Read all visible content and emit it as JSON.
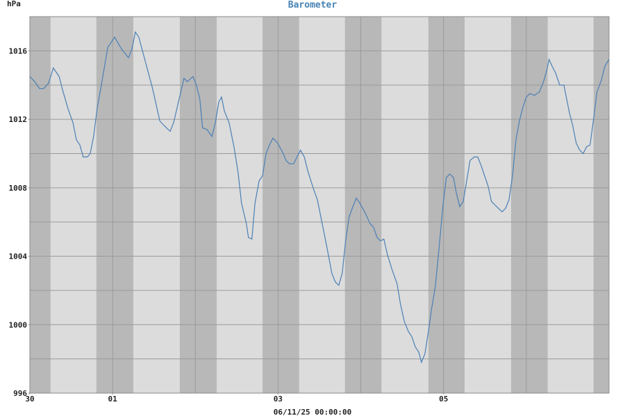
{
  "chart_data": {
    "type": "line",
    "title": "Barometer",
    "ylabel": "hPa",
    "xlabel": "06/11/25 00:00:00",
    "xlim": [
      0,
      168
    ],
    "xticks": [
      {
        "value": 0,
        "label": "30"
      },
      {
        "value": 24,
        "label": "01"
      },
      {
        "value": 72,
        "label": "03"
      },
      {
        "value": 120,
        "label": "05"
      }
    ],
    "xgrid": [
      24,
      48,
      72,
      96,
      120,
      144
    ],
    "ylim": [
      996,
      1018
    ],
    "yticks": [
      996,
      1000,
      1004,
      1008,
      1012,
      1016
    ],
    "ygrid": [
      998,
      1000,
      1002,
      1004,
      1006,
      1008,
      1010,
      1012,
      1014,
      1016
    ],
    "grid": true,
    "night": [
      [
        0,
        6
      ],
      [
        19.3,
        30
      ],
      [
        43.5,
        54.2
      ],
      [
        67.5,
        78.1
      ],
      [
        91.4,
        102
      ],
      [
        115.6,
        126.1
      ],
      [
        139.6,
        150.2
      ],
      [
        163.5,
        168
      ]
    ],
    "series": [
      {
        "color": "#4a7fb5",
        "x": [
          0,
          1.4,
          2.8,
          4.0,
          5.4,
          6.8,
          8.5,
          9.5,
          11.1,
          12.5,
          13.5,
          14.5,
          15.5,
          16.7,
          17.5,
          18.5,
          19.5,
          20.9,
          22.6,
          24.6,
          26.6,
          28.6,
          29.6,
          30.6,
          31.6,
          33.6,
          35.6,
          37.7,
          39.1,
          40.7,
          41.7,
          43.3,
          44.7,
          45.7,
          47.3,
          48.3,
          49.3,
          50.1,
          51.4,
          52.8,
          53.8,
          54.8,
          55.6,
          56.4,
          57.8,
          59.2,
          60.4,
          61.4,
          62.8,
          63.4,
          64.4,
          65.3,
          66.5,
          67.5,
          68.5,
          69.5,
          70.5,
          71.9,
          73.5,
          74.3,
          75.3,
          76.5,
          77.5,
          78.5,
          79.6,
          80.6,
          82.0,
          83.4,
          84.6,
          86.0,
          87.6,
          88.6,
          89.6,
          90.6,
          91.6,
          92.6,
          93.7,
          94.7,
          95.7,
          97.1,
          98.7,
          99.7,
          100.7,
          101.7,
          102.7,
          103.7,
          105.1,
          106.5,
          107.5,
          108.6,
          109.8,
          110.8,
          111.8,
          112.8,
          113.6,
          114.6,
          115.6,
          116.6,
          117.6,
          118.8,
          119.8,
          120.8,
          121.8,
          122.9,
          123.7,
          124.7,
          125.7,
          126.7,
          127.7,
          128.9,
          129.9,
          130.9,
          131.9,
          132.9,
          133.9,
          134.9,
          135.9,
          137.0,
          138.0,
          139.0,
          140.0,
          141.0,
          142.0,
          143.0,
          144.0,
          145.0,
          146.4,
          147.8,
          149.0,
          150.0,
          150.6,
          151.5,
          152.5,
          153.7,
          154.9,
          155.7,
          156.5,
          157.5,
          158.5,
          159.5,
          160.5,
          161.5,
          162.5,
          163.5,
          164.5,
          165.8,
          166.8,
          168.0
        ],
        "values": [
          1014.5,
          1014.2,
          1013.8,
          1013.8,
          1014.1,
          1015.0,
          1014.5,
          1013.7,
          1012.6,
          1011.8,
          1010.8,
          1010.5,
          1009.8,
          1009.8,
          1010.0,
          1011.0,
          1012.6,
          1014.2,
          1016.2,
          1016.8,
          1016.1,
          1015.6,
          1016.1,
          1017.1,
          1016.8,
          1015.3,
          1013.8,
          1011.9,
          1011.6,
          1011.3,
          1011.8,
          1013.2,
          1014.4,
          1014.2,
          1014.5,
          1014.0,
          1013.2,
          1011.5,
          1011.4,
          1011.0,
          1011.8,
          1013.0,
          1013.3,
          1012.5,
          1011.8,
          1010.4,
          1008.9,
          1007.1,
          1005.9,
          1005.1,
          1005.0,
          1007.1,
          1008.4,
          1008.7,
          1010.0,
          1010.5,
          1010.9,
          1010.6,
          1010.0,
          1009.6,
          1009.4,
          1009.4,
          1009.8,
          1010.2,
          1009.8,
          1009.0,
          1008.1,
          1007.3,
          1006.1,
          1004.7,
          1003.0,
          1002.5,
          1002.3,
          1003.0,
          1004.9,
          1006.3,
          1006.9,
          1007.4,
          1007.1,
          1006.6,
          1005.9,
          1005.7,
          1005.1,
          1004.9,
          1005.0,
          1004.1,
          1003.2,
          1002.4,
          1001.2,
          1000.2,
          999.6,
          999.3,
          998.7,
          998.4,
          997.8,
          998.3,
          999.6,
          1001.0,
          1002.2,
          1004.7,
          1006.9,
          1008.6,
          1008.8,
          1008.6,
          1007.7,
          1006.9,
          1007.2,
          1008.4,
          1009.6,
          1009.8,
          1009.8,
          1009.3,
          1008.7,
          1008.1,
          1007.2,
          1007.0,
          1006.8,
          1006.6,
          1006.8,
          1007.3,
          1008.7,
          1010.8,
          1011.9,
          1012.7,
          1013.3,
          1013.5,
          1013.4,
          1013.6,
          1014.2,
          1014.9,
          1015.5,
          1015.1,
          1014.7,
          1014.0,
          1014.0,
          1013.2,
          1012.4,
          1011.6,
          1010.6,
          1010.2,
          1010.0,
          1010.4,
          1010.5,
          1012.0,
          1013.6,
          1014.3,
          1015.1,
          1015.5
        ]
      }
    ]
  }
}
